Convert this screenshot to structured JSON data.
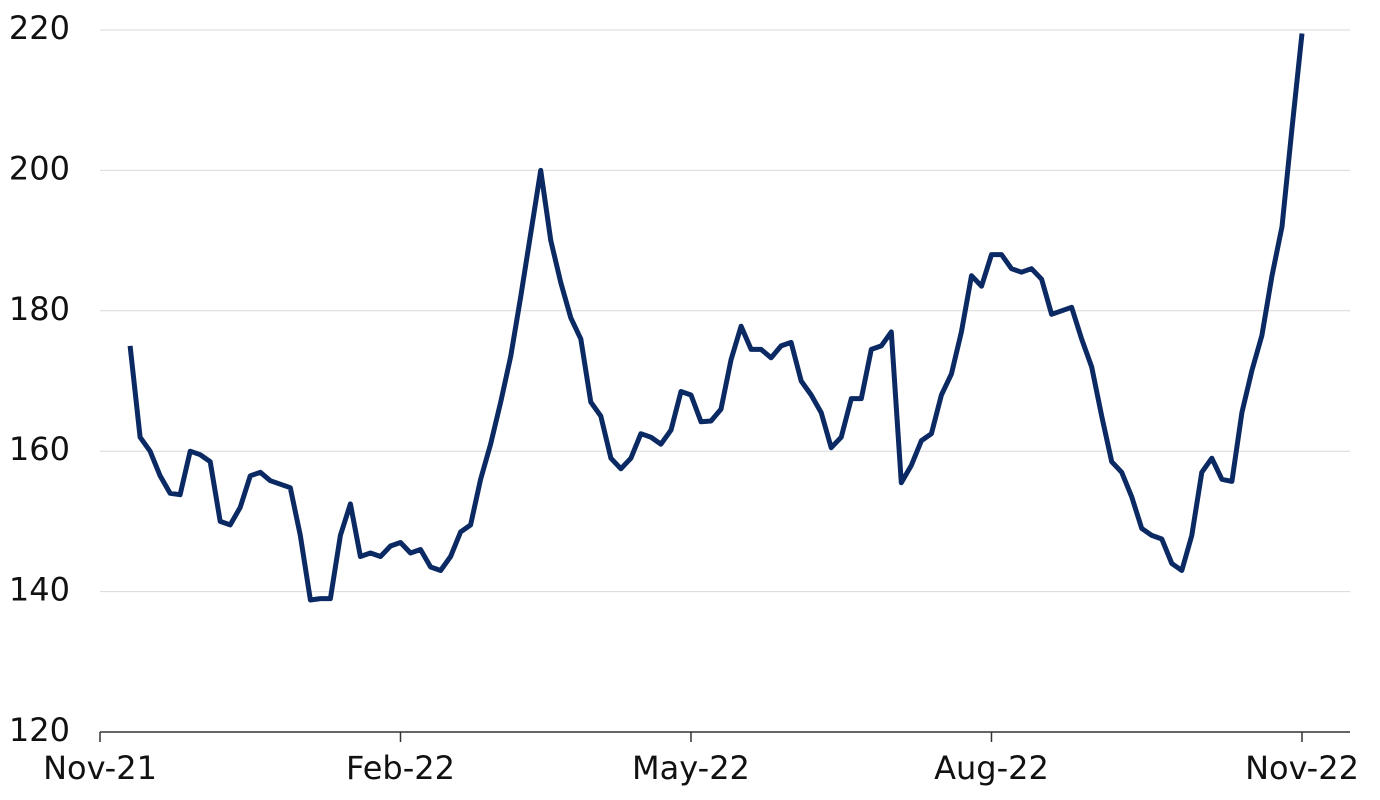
{
  "chart_data": {
    "type": "line",
    "categories": [
      "Nov-21",
      null,
      null,
      null,
      null,
      null,
      null,
      null,
      null,
      null,
      null,
      null,
      null,
      null,
      null,
      null,
      null,
      null,
      null,
      null,
      null,
      null,
      null,
      null,
      null,
      null,
      null,
      null,
      null,
      null,
      "Feb-22",
      null,
      null,
      null,
      null,
      null,
      null,
      null,
      null,
      null,
      null,
      null,
      null,
      null,
      null,
      null,
      null,
      null,
      null,
      null,
      null,
      null,
      null,
      null,
      null,
      null,
      null,
      null,
      null,
      "May-22",
      null,
      null,
      null,
      null,
      null,
      null,
      null,
      null,
      null,
      null,
      null,
      null,
      null,
      null,
      null,
      null,
      null,
      null,
      null,
      null,
      null,
      null,
      null,
      null,
      null,
      null,
      null,
      null,
      null,
      "Aug-22",
      null,
      null,
      null,
      null,
      null,
      null,
      null,
      null,
      null,
      null,
      null,
      null,
      null,
      null,
      null,
      null,
      null,
      null,
      null,
      null,
      null,
      null,
      null,
      null,
      null,
      null,
      null,
      null,
      null,
      null,
      "Nov-22"
    ],
    "series": [
      {
        "color": "#0b2a63",
        "values": [
          null,
          null,
          null,
          175,
          162,
          160,
          156.5,
          154,
          153.8,
          160,
          159.5,
          158.5,
          150,
          149.5,
          152,
          156.5,
          157,
          155.8,
          155.3,
          154.8,
          148,
          138.8,
          139,
          139,
          148,
          152.5,
          145,
          145.5,
          145,
          146.5,
          147,
          145.5,
          146,
          143.5,
          143,
          145,
          148.5,
          149.5,
          156,
          161,
          167,
          173.5,
          182,
          191,
          200,
          190,
          184,
          179,
          176,
          167,
          165,
          159,
          157.5,
          159,
          162.5,
          162,
          161,
          163,
          168.5,
          168,
          164.2,
          164.3,
          166,
          173,
          177.8,
          174.5,
          174.5,
          173.3,
          175,
          175.5,
          170,
          168,
          165.5,
          160.5,
          162,
          167.5,
          167.5,
          174.5,
          175,
          177,
          155.5,
          158,
          161.5,
          162.5,
          168,
          171,
          177,
          185,
          183.5,
          188,
          188,
          186,
          185.5,
          186,
          184.5,
          179.5,
          180,
          180.5,
          176,
          172,
          165,
          158.5,
          157,
          153.5,
          149,
          148,
          147.5,
          144,
          143,
          148,
          157,
          159,
          156,
          155.7,
          165.5,
          171.5,
          176.5,
          185,
          192,
          206,
          219.5
        ]
      }
    ],
    "ylim": [
      120,
      220
    ],
    "yticks": [
      120,
      140,
      160,
      180,
      200,
      220
    ],
    "grid": true
  }
}
